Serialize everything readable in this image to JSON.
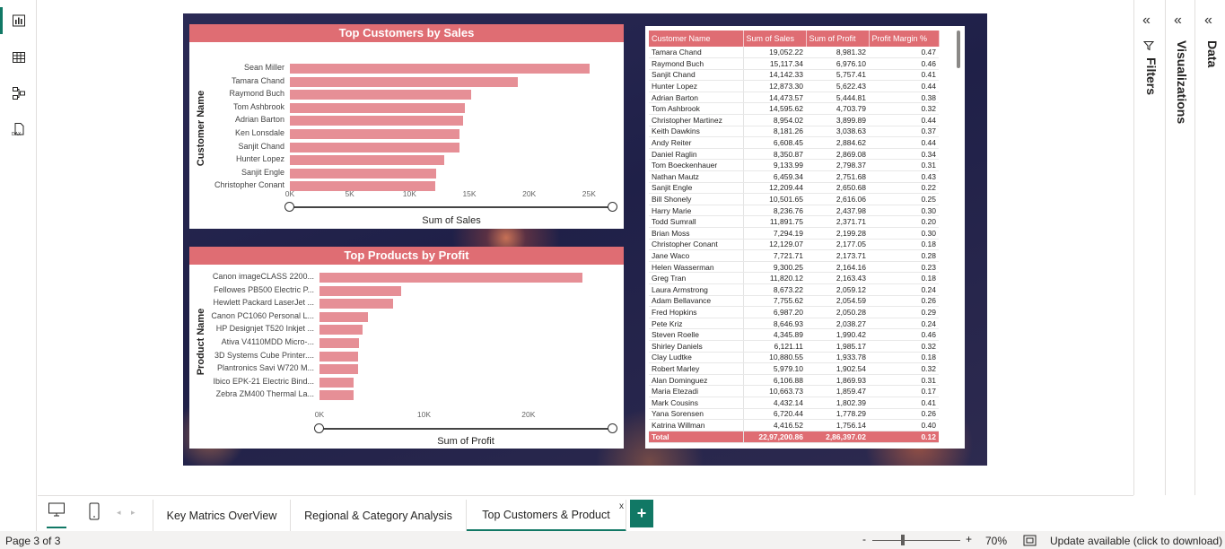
{
  "rail": {
    "items": [
      {
        "name": "report-view",
        "icon": "bar-chart-icon"
      },
      {
        "name": "table-view",
        "icon": "table-icon"
      },
      {
        "name": "model-view",
        "icon": "model-icon"
      },
      {
        "name": "dax-query-view",
        "icon": "dax-icon",
        "badge": "DAX"
      }
    ]
  },
  "charts": {
    "customers": {
      "title": "Top Customers by Sales",
      "ylabel": "Customer Name",
      "xlabel": "Sum of Sales",
      "ticks": [
        "0K",
        "5K",
        "10K",
        "15K",
        "20K",
        "25K"
      ]
    },
    "products": {
      "title": "Top Products by Profit",
      "ylabel": "Product Name",
      "xlabel": "Sum of Profit",
      "ticks": [
        "0K",
        "10K",
        "20K"
      ]
    }
  },
  "chart_data": [
    {
      "type": "bar",
      "orientation": "horizontal",
      "title": "Top Customers by Sales",
      "xlabel": "Sum of Sales",
      "ylabel": "Customer Name",
      "xlim": [
        0,
        27000
      ],
      "categories": [
        "Sean Miller",
        "Tamara Chand",
        "Raymond Buch",
        "Tom Ashbrook",
        "Adrian Barton",
        "Ken Lonsdale",
        "Sanjit Chand",
        "Hunter Lopez",
        "Sanjit Engle",
        "Christopher Conant"
      ],
      "values": [
        25043,
        19052,
        15117,
        14596,
        14474,
        14175,
        14142,
        12873,
        12209,
        12129
      ]
    },
    {
      "type": "bar",
      "orientation": "horizontal",
      "title": "Top Products by Profit",
      "xlabel": "Sum of Profit",
      "ylabel": "Product Name",
      "xlim": [
        0,
        28000
      ],
      "categories": [
        "Canon imageCLASS 2200...",
        "Fellowes PB500 Electric P...",
        "Hewlett Packard LaserJet ...",
        "Canon PC1060 Personal L...",
        "HP Designjet T520 Inkjet ...",
        "Ativa V4110MDD Micro-...",
        "3D Systems Cube Printer....",
        "Plantronics Savi W720 M...",
        "Ibico EPK-21 Electric Bind...",
        "Zebra ZM400 Thermal La..."
      ],
      "values": [
        25200,
        7800,
        7000,
        4600,
        4100,
        3800,
        3700,
        3700,
        3300,
        3300
      ]
    }
  ],
  "table": {
    "headers": [
      "Customer Name",
      "Sum of Sales",
      "Sum of Profit",
      "Profit Margin %"
    ],
    "rows": [
      [
        "Tamara Chand",
        "19,052.22",
        "8,981.32",
        "0.47"
      ],
      [
        "Raymond Buch",
        "15,117.34",
        "6,976.10",
        "0.46"
      ],
      [
        "Sanjit Chand",
        "14,142.33",
        "5,757.41",
        "0.41"
      ],
      [
        "Hunter Lopez",
        "12,873.30",
        "5,622.43",
        "0.44"
      ],
      [
        "Adrian Barton",
        "14,473.57",
        "5,444.81",
        "0.38"
      ],
      [
        "Tom Ashbrook",
        "14,595.62",
        "4,703.79",
        "0.32"
      ],
      [
        "Christopher Martinez",
        "8,954.02",
        "3,899.89",
        "0.44"
      ],
      [
        "Keith Dawkins",
        "8,181.26",
        "3,038.63",
        "0.37"
      ],
      [
        "Andy Reiter",
        "6,608.45",
        "2,884.62",
        "0.44"
      ],
      [
        "Daniel Raglin",
        "8,350.87",
        "2,869.08",
        "0.34"
      ],
      [
        "Tom Boeckenhauer",
        "9,133.99",
        "2,798.37",
        "0.31"
      ],
      [
        "Nathan Mautz",
        "6,459.34",
        "2,751.68",
        "0.43"
      ],
      [
        "Sanjit Engle",
        "12,209.44",
        "2,650.68",
        "0.22"
      ],
      [
        "Bill Shonely",
        "10,501.65",
        "2,616.06",
        "0.25"
      ],
      [
        "Harry Marie",
        "8,236.76",
        "2,437.98",
        "0.30"
      ],
      [
        "Todd Sumrall",
        "11,891.75",
        "2,371.71",
        "0.20"
      ],
      [
        "Brian Moss",
        "7,294.19",
        "2,199.28",
        "0.30"
      ],
      [
        "Christopher Conant",
        "12,129.07",
        "2,177.05",
        "0.18"
      ],
      [
        "Jane Waco",
        "7,721.71",
        "2,173.71",
        "0.28"
      ],
      [
        "Helen Wasserman",
        "9,300.25",
        "2,164.16",
        "0.23"
      ],
      [
        "Greg Tran",
        "11,820.12",
        "2,163.43",
        "0.18"
      ],
      [
        "Laura Armstrong",
        "8,673.22",
        "2,059.12",
        "0.24"
      ],
      [
        "Adam Bellavance",
        "7,755.62",
        "2,054.59",
        "0.26"
      ],
      [
        "Fred Hopkins",
        "6,987.20",
        "2,050.28",
        "0.29"
      ],
      [
        "Pete Kriz",
        "8,646.93",
        "2,038.27",
        "0.24"
      ],
      [
        "Steven Roelle",
        "4,345.89",
        "1,990.42",
        "0.46"
      ],
      [
        "Shirley Daniels",
        "6,121.11",
        "1,985.17",
        "0.32"
      ],
      [
        "Clay Ludtke",
        "10,880.55",
        "1,933.78",
        "0.18"
      ],
      [
        "Robert Marley",
        "5,979.10",
        "1,902.54",
        "0.32"
      ],
      [
        "Alan Dominguez",
        "6,106.88",
        "1,869.93",
        "0.31"
      ],
      [
        "Maria Etezadi",
        "10,663.73",
        "1,859.47",
        "0.17"
      ],
      [
        "Mark Cousins",
        "4,432.14",
        "1,802.39",
        "0.41"
      ],
      [
        "Yana Sorensen",
        "6,720.44",
        "1,778.29",
        "0.26"
      ],
      [
        "Katrina Willman",
        "4,416.52",
        "1,756.14",
        "0.40"
      ]
    ],
    "total": [
      "Total",
      "22,97,200.86",
      "2,86,397.02",
      "0.12"
    ]
  },
  "panes": {
    "data": "Data",
    "visualizations": "Visualizations",
    "filters": "Filters"
  },
  "tabs": [
    {
      "label": "Key Matrics OverView"
    },
    {
      "label": "Regional & Category Analysis"
    },
    {
      "label": "Top Customers & Product",
      "active": true
    }
  ],
  "tab_close": "x",
  "add_tab": "+",
  "status": {
    "page": "Page 3 of 3",
    "zoom_minus": "-",
    "zoom_plus": "+",
    "zoom": "70%",
    "update": "Update available (click to download)"
  },
  "colors": {
    "accent": "#117865",
    "header": "#df6d73",
    "bar": "#e68f96"
  }
}
